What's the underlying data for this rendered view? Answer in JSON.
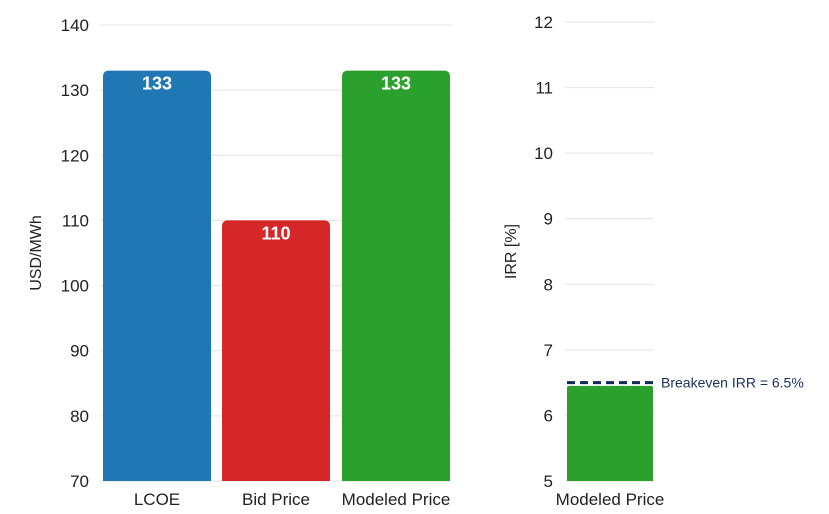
{
  "chart_data": [
    {
      "type": "bar",
      "ylabel": "USD/MWh",
      "ylim": [
        70,
        140
      ],
      "yticks": [
        70,
        80,
        90,
        100,
        110,
        120,
        130,
        140
      ],
      "grid": true,
      "categories": [
        "LCOE",
        "Bid Price",
        "Modeled Price"
      ],
      "values": [
        133,
        110,
        133
      ],
      "data_labels": [
        "133",
        "110",
        "133"
      ],
      "colors": [
        "#1f77b4",
        "#d62728",
        "#2ca02c"
      ]
    },
    {
      "type": "bar",
      "ylabel": "IRR [%]",
      "ylim": [
        5,
        12
      ],
      "yticks": [
        5,
        6,
        7,
        8,
        9,
        10,
        11,
        12
      ],
      "grid": true,
      "categories": [
        "Modeled Price"
      ],
      "values": [
        6.45
      ],
      "colors": [
        "#2ca02c"
      ],
      "reference_line": {
        "value": 6.5,
        "label": "Breakeven IRR = 6.5%",
        "style": "dashed",
        "color": "#0d2a5c"
      }
    }
  ]
}
